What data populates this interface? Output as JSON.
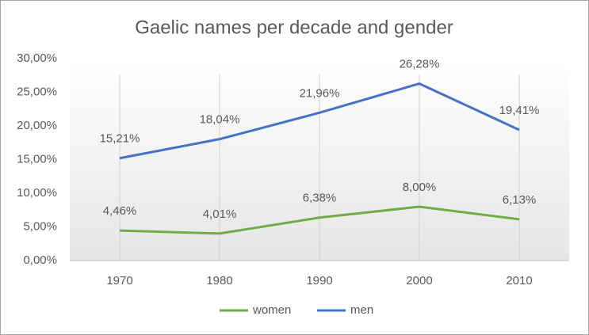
{
  "chart_data": {
    "type": "line",
    "title": "Gaelic names per decade and gender",
    "categories": [
      "1970",
      "1980",
      "1990",
      "2000",
      "2010"
    ],
    "series": [
      {
        "name": "women",
        "color": "#70ad47",
        "values": [
          4.46,
          4.01,
          6.38,
          8.0,
          6.13
        ],
        "value_labels": [
          "4,46%",
          "4,01%",
          "6,38%",
          "8,00%",
          "6,13%"
        ]
      },
      {
        "name": "men",
        "color": "#4472c4",
        "values": [
          15.21,
          18.04,
          21.96,
          26.28,
          19.41
        ],
        "value_labels": [
          "15,21%",
          "18,04%",
          "21,96%",
          "26,28%",
          "19,41%"
        ]
      }
    ],
    "ylim": [
      0,
      30
    ],
    "yticks": [
      {
        "value": 0,
        "label": "0,00%"
      },
      {
        "value": 5,
        "label": "5,00%"
      },
      {
        "value": 10,
        "label": "10,00%"
      },
      {
        "value": 15,
        "label": "15,00%"
      },
      {
        "value": 20,
        "label": "20,00%"
      },
      {
        "value": 25,
        "label": "25,00%"
      },
      {
        "value": 30,
        "label": "30,00%"
      }
    ],
    "legend": "bottom"
  }
}
